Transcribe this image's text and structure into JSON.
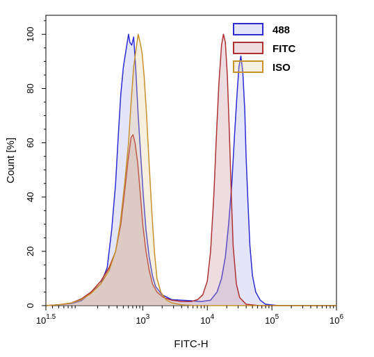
{
  "chart_data": {
    "type": "area",
    "title": "",
    "xlabel": "FITC-H",
    "ylabel": "Count [%]",
    "xscale": "log",
    "xlim_log10": [
      1.5,
      6
    ],
    "ylim": [
      0,
      107
    ],
    "grid": false,
    "legend_position": "top-right",
    "x_ticks": [
      {
        "exp": 1.5,
        "base": "10",
        "sup": "1.5"
      },
      {
        "exp": 3,
        "base": "10",
        "sup": "3"
      },
      {
        "exp": 4,
        "base": "10",
        "sup": "4"
      },
      {
        "exp": 5,
        "base": "10",
        "sup": "5"
      },
      {
        "exp": 6,
        "base": "10",
        "sup": "6"
      }
    ],
    "y_ticks": [
      0,
      20,
      40,
      60,
      80,
      100
    ],
    "series": [
      {
        "name": "488",
        "color": "#2b2bd6",
        "fill": "rgba(160,160,230,0.28)",
        "points": [
          [
            1.5,
            0
          ],
          [
            1.7,
            0.3
          ],
          [
            1.9,
            0.8
          ],
          [
            2.05,
            1.8
          ],
          [
            2.2,
            4.8
          ],
          [
            2.35,
            8
          ],
          [
            2.45,
            14
          ],
          [
            2.52,
            28
          ],
          [
            2.58,
            45
          ],
          [
            2.62,
            62
          ],
          [
            2.66,
            78
          ],
          [
            2.7,
            88
          ],
          [
            2.74,
            94
          ],
          [
            2.78,
            100
          ],
          [
            2.8,
            97
          ],
          [
            2.83,
            96
          ],
          [
            2.86,
            99
          ],
          [
            2.89,
            88
          ],
          [
            2.93,
            70
          ],
          [
            2.97,
            55
          ],
          [
            3.01,
            40
          ],
          [
            3.05,
            28
          ],
          [
            3.1,
            18
          ],
          [
            3.15,
            11
          ],
          [
            3.2,
            7
          ],
          [
            3.3,
            4
          ],
          [
            3.45,
            2.2
          ],
          [
            3.6,
            2
          ],
          [
            3.75,
            1.8
          ],
          [
            3.9,
            1.5
          ],
          [
            4.05,
            2
          ],
          [
            4.15,
            5
          ],
          [
            4.22,
            10
          ],
          [
            4.28,
            18
          ],
          [
            4.33,
            30
          ],
          [
            4.38,
            45
          ],
          [
            4.42,
            62
          ],
          [
            4.46,
            78
          ],
          [
            4.49,
            88
          ],
          [
            4.52,
            92
          ],
          [
            4.55,
            86
          ],
          [
            4.58,
            72
          ],
          [
            4.6,
            55
          ],
          [
            4.63,
            38
          ],
          [
            4.66,
            22
          ],
          [
            4.7,
            11
          ],
          [
            4.75,
            5
          ],
          [
            4.82,
            2
          ],
          [
            4.9,
            0.5
          ],
          [
            5.1,
            0
          ],
          [
            6,
            0
          ]
        ]
      },
      {
        "name": "FITC",
        "color": "#b03030",
        "fill": "rgba(200,150,160,0.32)",
        "points": [
          [
            1.5,
            0
          ],
          [
            1.7,
            0.3
          ],
          [
            1.9,
            1
          ],
          [
            2.05,
            2.5
          ],
          [
            2.2,
            5
          ],
          [
            2.35,
            9
          ],
          [
            2.48,
            14
          ],
          [
            2.58,
            20
          ],
          [
            2.66,
            30
          ],
          [
            2.72,
            42
          ],
          [
            2.78,
            55
          ],
          [
            2.82,
            62
          ],
          [
            2.85,
            63
          ],
          [
            2.88,
            60
          ],
          [
            2.92,
            53
          ],
          [
            2.96,
            42
          ],
          [
            3.0,
            30
          ],
          [
            3.05,
            20
          ],
          [
            3.1,
            13
          ],
          [
            3.15,
            8
          ],
          [
            3.22,
            5
          ],
          [
            3.32,
            3
          ],
          [
            3.45,
            2
          ],
          [
            3.6,
            1.5
          ],
          [
            3.75,
            1.5
          ],
          [
            3.85,
            2.2
          ],
          [
            3.93,
            4
          ],
          [
            4.0,
            9
          ],
          [
            4.05,
            20
          ],
          [
            4.1,
            40
          ],
          [
            4.14,
            62
          ],
          [
            4.18,
            82
          ],
          [
            4.22,
            96
          ],
          [
            4.25,
            100
          ],
          [
            4.28,
            97
          ],
          [
            4.31,
            85
          ],
          [
            4.34,
            65
          ],
          [
            4.37,
            42
          ],
          [
            4.4,
            22
          ],
          [
            4.45,
            8
          ],
          [
            4.5,
            3
          ],
          [
            4.6,
            0.5
          ],
          [
            4.8,
            0
          ],
          [
            6,
            0
          ]
        ]
      },
      {
        "name": "ISO",
        "color": "#c8902a",
        "fill": "rgba(225,200,140,0.28)",
        "points": [
          [
            1.5,
            0
          ],
          [
            1.7,
            0.3
          ],
          [
            1.9,
            1
          ],
          [
            2.05,
            2.2
          ],
          [
            2.2,
            4.5
          ],
          [
            2.35,
            8
          ],
          [
            2.48,
            13
          ],
          [
            2.58,
            20
          ],
          [
            2.65,
            30
          ],
          [
            2.72,
            45
          ],
          [
            2.78,
            60
          ],
          [
            2.82,
            75
          ],
          [
            2.86,
            88
          ],
          [
            2.9,
            95
          ],
          [
            2.93,
            100
          ],
          [
            2.96,
            97
          ],
          [
            2.99,
            93
          ],
          [
            3.02,
            85
          ],
          [
            3.06,
            70
          ],
          [
            3.1,
            52
          ],
          [
            3.14,
            35
          ],
          [
            3.18,
            20
          ],
          [
            3.22,
            10
          ],
          [
            3.28,
            5
          ],
          [
            3.36,
            2.2
          ],
          [
            3.45,
            1
          ],
          [
            3.6,
            0.3
          ],
          [
            3.8,
            0
          ],
          [
            6,
            0
          ]
        ]
      }
    ]
  }
}
